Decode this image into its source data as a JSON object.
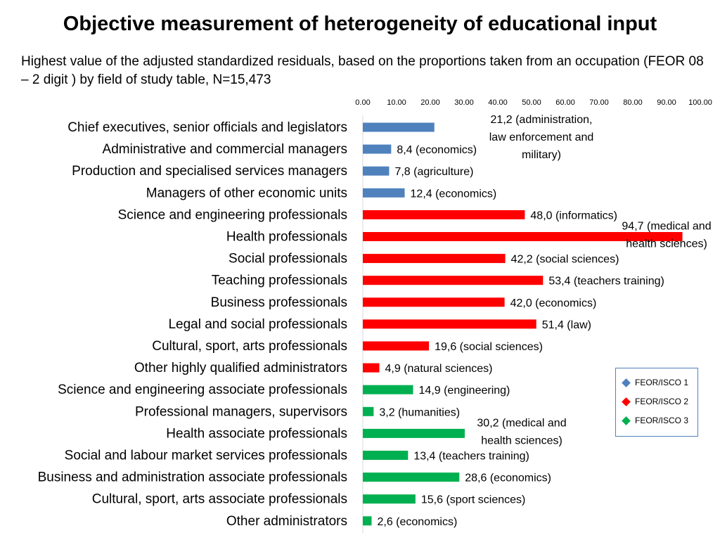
{
  "chart_data": {
    "type": "bar",
    "orientation": "horizontal",
    "title": "Objective measurement of heterogeneity of educational input",
    "subtitle": "Highest value of the adjusted standardized residuals, based on the proportions taken from an occupation (FEOR 08 – 2 digit ) by field of study table, N=15,473",
    "xlim": [
      0,
      100
    ],
    "x_ticks": [
      "0.00",
      "10.00",
      "20.00",
      "30.00",
      "40.00",
      "50.00",
      "60.00",
      "70.00",
      "80.00",
      "90.00",
      "100.00"
    ],
    "x_tick_values": [
      0,
      10,
      20,
      30,
      40,
      50,
      60,
      70,
      80,
      90,
      100
    ],
    "colors": {
      "FEOR/ISCO 1": "#4f81bd",
      "FEOR/ISCO 2": "#ff0000",
      "FEOR/ISCO 3": "#00b050"
    },
    "categories": [
      {
        "label": "Chief executives, senior officials and legislators",
        "value": 21.2,
        "group": "FEOR/ISCO 1",
        "data_label": [
          "21,2 (administration,",
          "law enforcement and",
          "military)"
        ]
      },
      {
        "label": "Administrative and commercial managers",
        "value": 8.4,
        "group": "FEOR/ISCO 1",
        "data_label": [
          "8,4 (economics)"
        ]
      },
      {
        "label": "Production and specialised services managers",
        "value": 7.8,
        "group": "FEOR/ISCO 1",
        "data_label": [
          "7,8 (agriculture)"
        ]
      },
      {
        "label": "Managers of other economic units",
        "value": 12.4,
        "group": "FEOR/ISCO 1",
        "data_label": [
          "12,4 (economics)"
        ]
      },
      {
        "label": "Science and engineering professionals",
        "value": 48.0,
        "group": "FEOR/ISCO 2",
        "data_label": [
          "48,0 (informatics)"
        ]
      },
      {
        "label": "Health professionals",
        "value": 94.7,
        "group": "FEOR/ISCO 2",
        "data_label": [
          "94,7 (medical and",
          "health sciences)"
        ]
      },
      {
        "label": "Social professionals",
        "value": 42.2,
        "group": "FEOR/ISCO 2",
        "data_label": [
          "42,2 (social sciences)"
        ]
      },
      {
        "label": "Teaching professionals",
        "value": 53.4,
        "group": "FEOR/ISCO 2",
        "data_label": [
          "53,4 (teachers training)"
        ]
      },
      {
        "label": "Business professionals",
        "value": 42.0,
        "group": "FEOR/ISCO 2",
        "data_label": [
          "42,0 (economics)"
        ]
      },
      {
        "label": "Legal and social professionals",
        "value": 51.4,
        "group": "FEOR/ISCO 2",
        "data_label": [
          "51,4 (law)"
        ]
      },
      {
        "label": "Cultural, sport, arts professionals",
        "value": 19.6,
        "group": "FEOR/ISCO 2",
        "data_label": [
          "19,6 (social sciences)"
        ]
      },
      {
        "label": "Other highly qualified administrators",
        "value": 4.9,
        "group": "FEOR/ISCO 2",
        "data_label": [
          "4,9 (natural sciences)"
        ]
      },
      {
        "label": "Science and engineering associate professionals",
        "value": 14.9,
        "group": "FEOR/ISCO 3",
        "data_label": [
          "14,9 (engineering)"
        ]
      },
      {
        "label": "Professional managers, supervisors",
        "value": 3.2,
        "group": "FEOR/ISCO 3",
        "data_label": [
          "3,2 (humanities)"
        ]
      },
      {
        "label": "Health associate professionals",
        "value": 30.2,
        "group": "FEOR/ISCO 3",
        "data_label": [
          "30,2 (medical and",
          "health sciences)"
        ]
      },
      {
        "label": "Social and labour market services professionals",
        "value": 13.4,
        "group": "FEOR/ISCO 3",
        "data_label": [
          "13,4 (teachers training)"
        ]
      },
      {
        "label": "Business and administration associate professionals",
        "value": 28.6,
        "group": "FEOR/ISCO 3",
        "data_label": [
          "28,6 (economics)"
        ]
      },
      {
        "label": "Cultural, sport, arts associate professionals",
        "value": 15.6,
        "group": "FEOR/ISCO 3",
        "data_label": [
          "15,6 (sport sciences)"
        ]
      },
      {
        "label": "Other administrators",
        "value": 2.6,
        "group": "FEOR/ISCO 3",
        "data_label": [
          "2,6 (economics)"
        ]
      }
    ],
    "legend": {
      "position": "right",
      "items": [
        {
          "label": "FEOR/ISCO 1",
          "color": "#4f81bd"
        },
        {
          "label": "FEOR/ISCO 2",
          "color": "#ff0000"
        },
        {
          "label": "FEOR/ISCO 3",
          "color": "#00b050"
        }
      ]
    }
  }
}
